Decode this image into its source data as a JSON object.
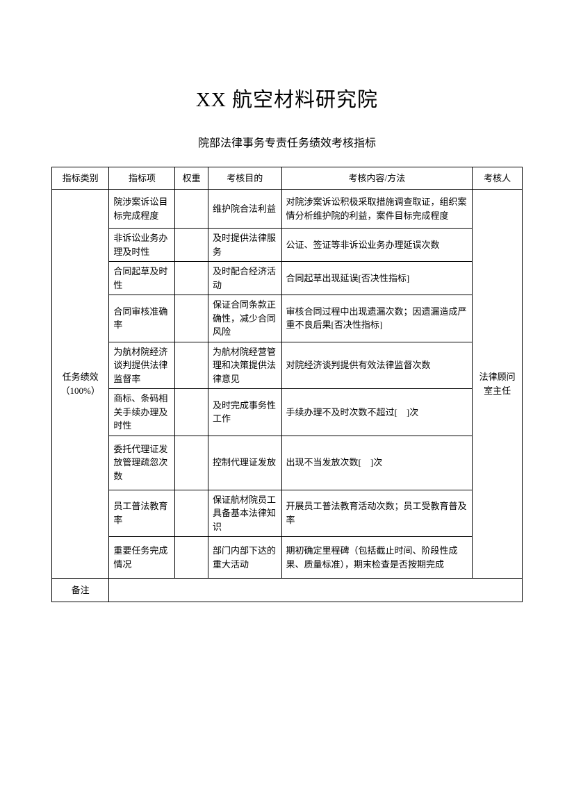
{
  "title": "XX 航空材料研究院",
  "subtitle": "院部法律事务专责任务绩效考核指标",
  "headers": {
    "category": "指标类别",
    "item": "指标项",
    "weight": "权重",
    "purpose": "考核目的",
    "content": "考核内容/方法",
    "examiner": "考核人"
  },
  "category_label": "任务绩效（100%）",
  "examiner_label": "法律顾问室主任",
  "notes_label": "备注",
  "rows": [
    {
      "item": "院涉案诉讼目标完成程度",
      "weight": "",
      "purpose": "维护院合法利益",
      "content": "对院涉案诉讼积极采取措施调查取证，组织案情分析维护院的利益，案件目标完成程度"
    },
    {
      "item": "非诉讼业务办理及时性",
      "weight": "",
      "purpose": "及时提供法律服务",
      "content": "公证、签证等非诉讼业务办理延误次数"
    },
    {
      "item": "合同起草及时性",
      "weight": "",
      "purpose": "及时配合经济活动",
      "content": "合同起草出现延误[否决性指标]"
    },
    {
      "item": "合同审核准确率",
      "weight": "",
      "purpose": "保证合同条款正确性，减少合同风险",
      "content": "审核合同过程中出现遗漏次数；因遗漏造成严重不良后果[否决性指标]"
    },
    {
      "item": "为航材院经济谈判提供法律监督率",
      "weight": "",
      "purpose": "为航材院经营管理和决策提供法律意见",
      "content": "对院经济谈判提供有效法律监督次数"
    },
    {
      "item": "商标、条码相关手续办理及时性",
      "weight": "",
      "purpose": "及时完成事务性工作",
      "content": "手续办理不及时次数不超过[　]次"
    },
    {
      "item": "委托代理证发放管理疏忽次数",
      "weight": "",
      "purpose": "控制代理证发放",
      "content": "出现不当发放次数[　]次"
    },
    {
      "item": "员工普法教育率",
      "weight": "",
      "purpose": "保证航材院员工具备基本法律知识",
      "content": "开展员工普法教育活动次数；员工受教育普及率"
    },
    {
      "item": "重要任务完成情况",
      "weight": "",
      "purpose": "部门内部下达的重大活动",
      "content": "期初确定里程碑（包括截止时间、阶段性成果、质量标准），期末检查是否按期完成"
    }
  ]
}
